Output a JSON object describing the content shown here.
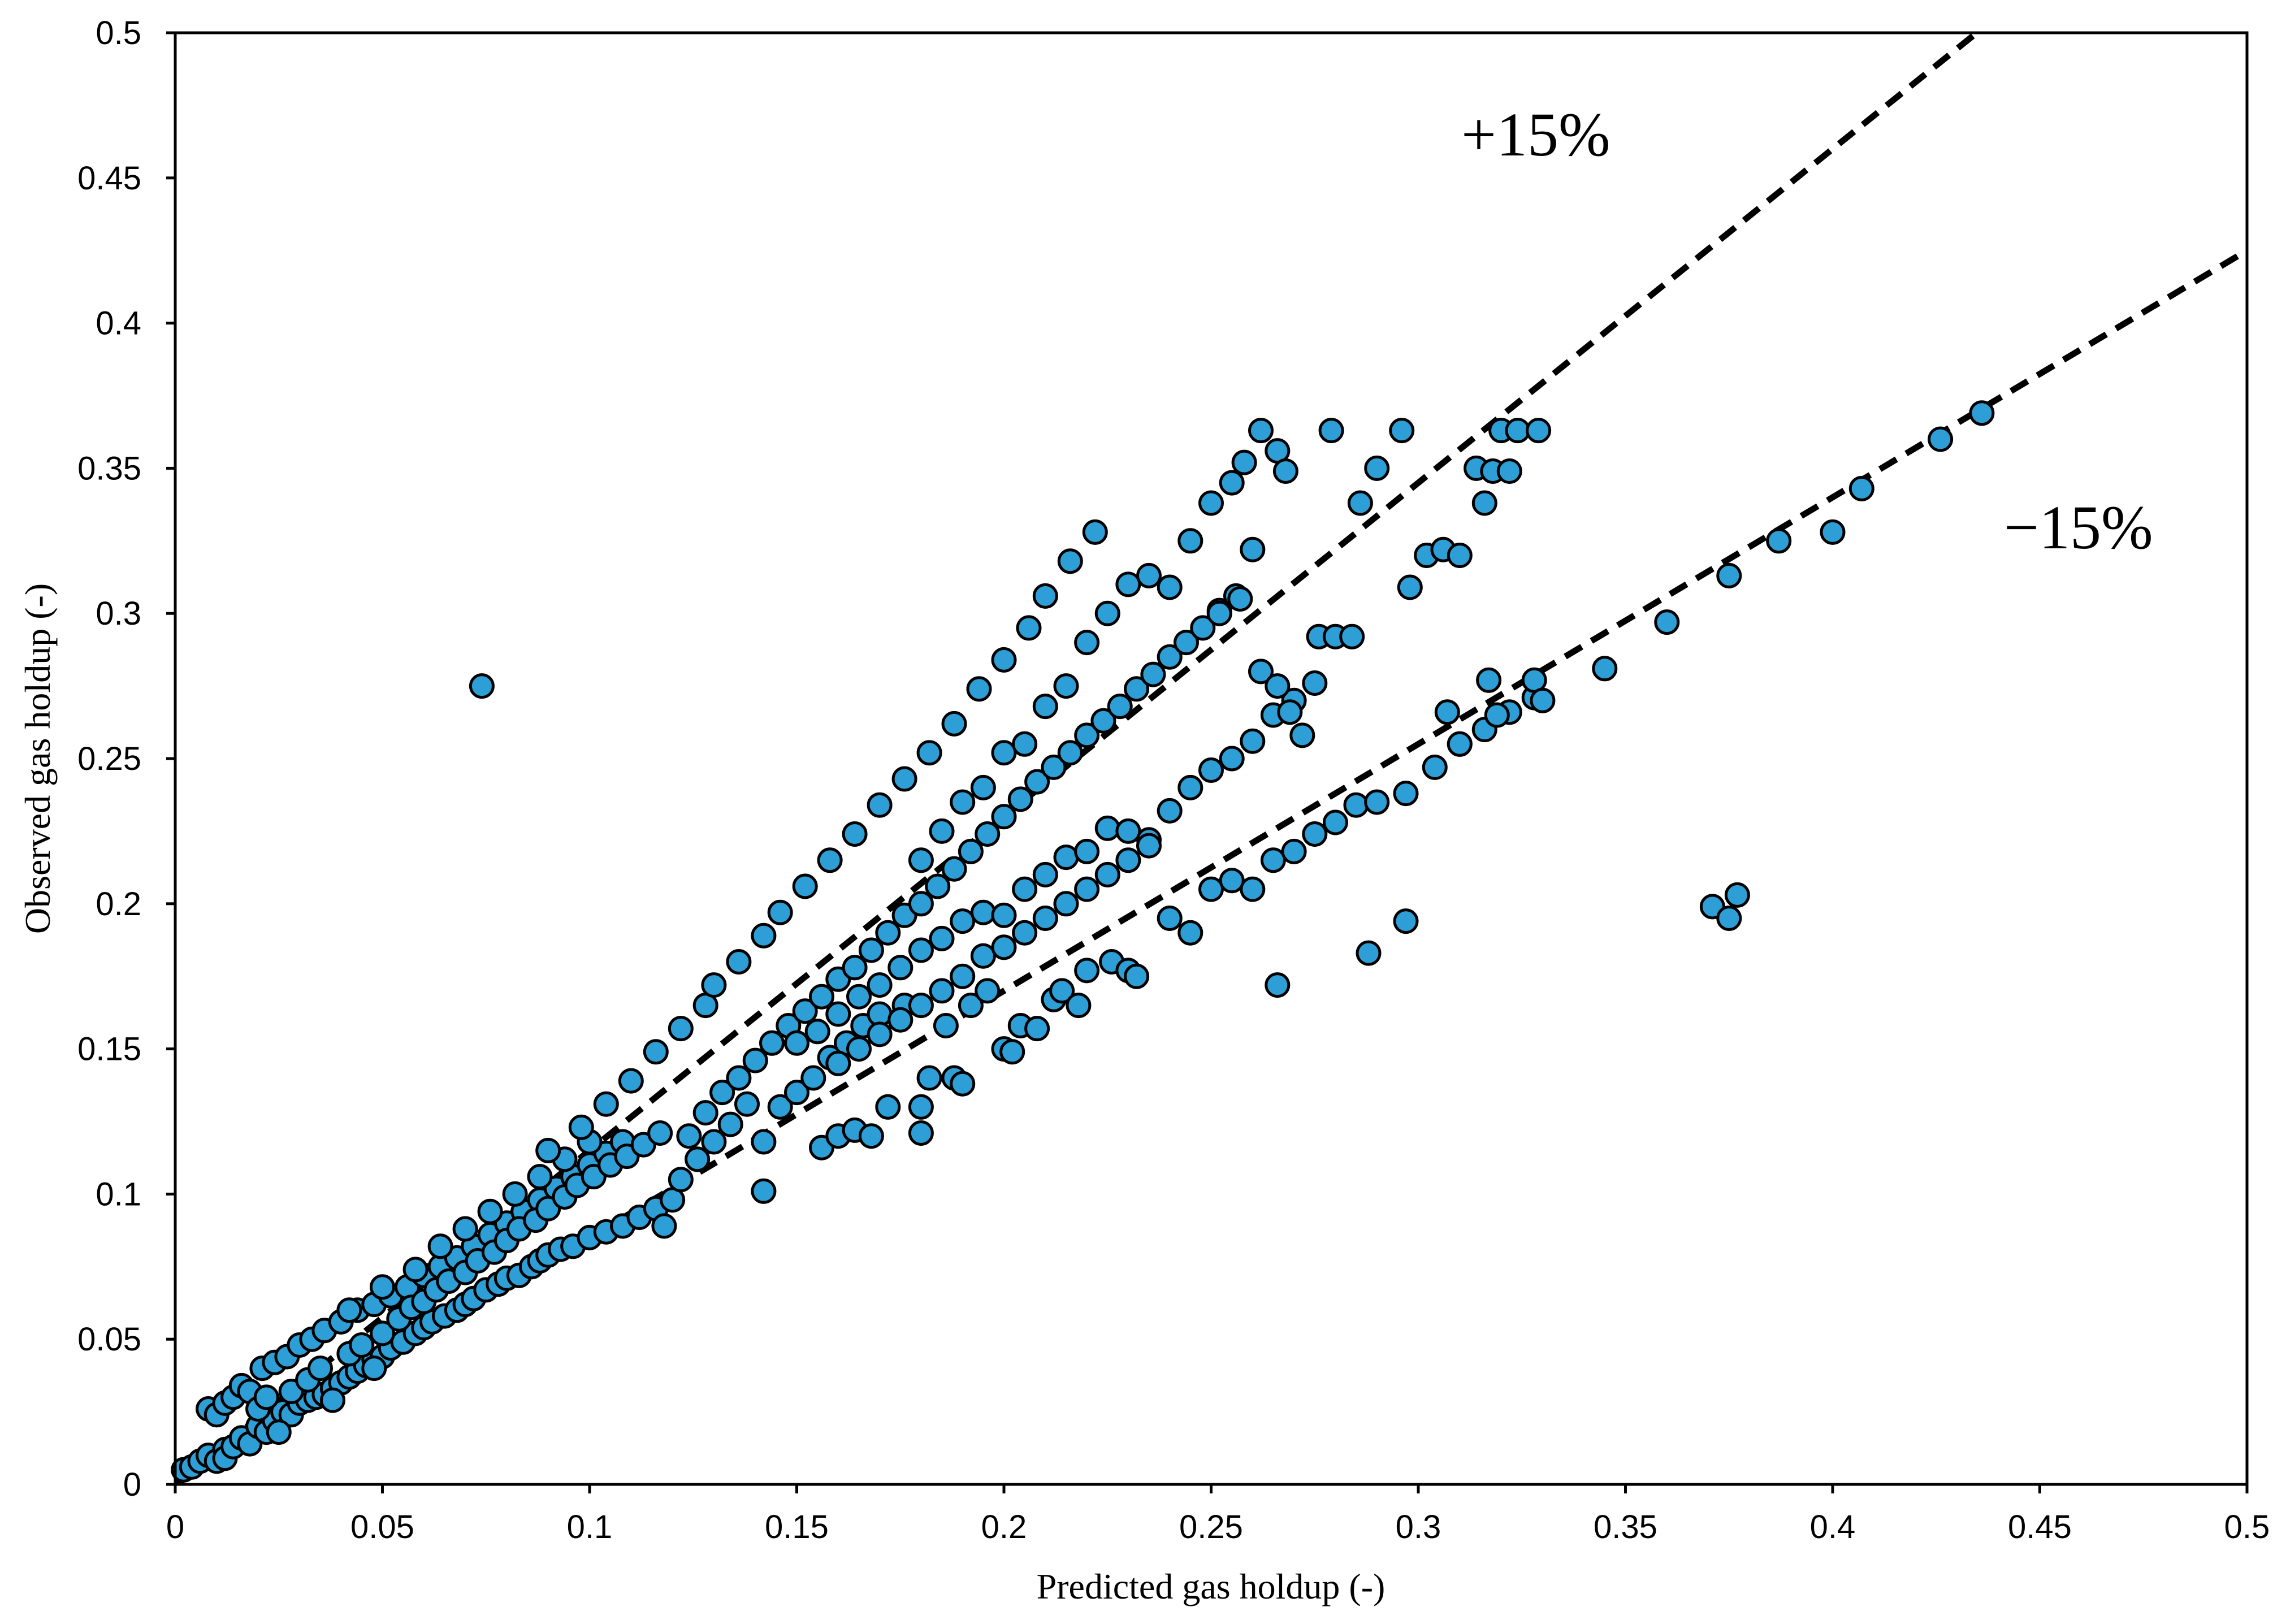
{
  "chart_data": {
    "type": "scatter",
    "xlabel": "Predicted gas holdup (-)",
    "ylabel": "Observed gas holdup (-)",
    "xlim": [
      0,
      0.5
    ],
    "ylim": [
      0,
      0.5
    ],
    "x_ticks": [
      "0",
      "0.05",
      "0.1",
      "0.15",
      "0.2",
      "0.25",
      "0.3",
      "0.35",
      "0.4",
      "0.45",
      "0.5"
    ],
    "y_ticks": [
      "0",
      "0.05",
      "0.1",
      "0.15",
      "0.2",
      "0.25",
      "0.3",
      "0.35",
      "0.4",
      "0.45",
      "0.5"
    ],
    "grid": false,
    "legend": "none",
    "marker_color": "#2e9fd6",
    "marker_edge_color": "#000000",
    "reference_lines": [
      {
        "label": "+15%",
        "slope": 1.15,
        "style": "dashed",
        "color": "#000000"
      },
      {
        "label": "−15%",
        "slope": 0.85,
        "style": "dashed",
        "color": "#000000"
      }
    ],
    "annotations": [
      "+15%",
      "−15%"
    ],
    "points": [
      [
        0.002,
        0.005
      ],
      [
        0.004,
        0.006
      ],
      [
        0.006,
        0.008
      ],
      [
        0.008,
        0.01
      ],
      [
        0.01,
        0.008
      ],
      [
        0.012,
        0.012
      ],
      [
        0.012,
        0.009
      ],
      [
        0.014,
        0.013
      ],
      [
        0.016,
        0.016
      ],
      [
        0.018,
        0.014
      ],
      [
        0.02,
        0.02
      ],
      [
        0.022,
        0.018
      ],
      [
        0.024,
        0.022
      ],
      [
        0.026,
        0.025
      ],
      [
        0.028,
        0.024
      ],
      [
        0.03,
        0.028
      ],
      [
        0.032,
        0.029
      ],
      [
        0.034,
        0.03
      ],
      [
        0.036,
        0.031
      ],
      [
        0.038,
        0.033
      ],
      [
        0.04,
        0.035
      ],
      [
        0.042,
        0.037
      ],
      [
        0.044,
        0.039
      ],
      [
        0.046,
        0.041
      ],
      [
        0.048,
        0.043
      ],
      [
        0.05,
        0.044
      ],
      [
        0.052,
        0.047
      ],
      [
        0.055,
        0.049
      ],
      [
        0.058,
        0.052
      ],
      [
        0.06,
        0.054
      ],
      [
        0.062,
        0.056
      ],
      [
        0.065,
        0.058
      ],
      [
        0.068,
        0.06
      ],
      [
        0.07,
        0.062
      ],
      [
        0.072,
        0.064
      ],
      [
        0.075,
        0.067
      ],
      [
        0.078,
        0.069
      ],
      [
        0.08,
        0.071
      ],
      [
        0.083,
        0.072
      ],
      [
        0.086,
        0.075
      ],
      [
        0.088,
        0.077
      ],
      [
        0.09,
        0.079
      ],
      [
        0.093,
        0.081
      ],
      [
        0.096,
        0.082
      ],
      [
        0.1,
        0.085
      ],
      [
        0.104,
        0.087
      ],
      [
        0.108,
        0.089
      ],
      [
        0.112,
        0.092
      ],
      [
        0.116,
        0.095
      ],
      [
        0.12,
        0.098
      ],
      [
        0.008,
        0.026
      ],
      [
        0.01,
        0.024
      ],
      [
        0.012,
        0.028
      ],
      [
        0.014,
        0.03
      ],
      [
        0.016,
        0.034
      ],
      [
        0.018,
        0.032
      ],
      [
        0.021,
        0.04
      ],
      [
        0.024,
        0.042
      ],
      [
        0.027,
        0.044
      ],
      [
        0.03,
        0.048
      ],
      [
        0.033,
        0.05
      ],
      [
        0.036,
        0.053
      ],
      [
        0.04,
        0.056
      ],
      [
        0.044,
        0.06
      ],
      [
        0.048,
        0.062
      ],
      [
        0.052,
        0.065
      ],
      [
        0.056,
        0.068
      ],
      [
        0.06,
        0.072
      ],
      [
        0.064,
        0.075
      ],
      [
        0.068,
        0.078
      ],
      [
        0.072,
        0.082
      ],
      [
        0.076,
        0.086
      ],
      [
        0.08,
        0.09
      ],
      [
        0.084,
        0.094
      ],
      [
        0.088,
        0.098
      ],
      [
        0.092,
        0.102
      ],
      [
        0.096,
        0.106
      ],
      [
        0.1,
        0.11
      ],
      [
        0.104,
        0.114
      ],
      [
        0.108,
        0.118
      ],
      [
        0.02,
        0.026
      ],
      [
        0.022,
        0.03
      ],
      [
        0.025,
        0.018
      ],
      [
        0.028,
        0.032
      ],
      [
        0.032,
        0.036
      ],
      [
        0.035,
        0.04
      ],
      [
        0.038,
        0.029
      ],
      [
        0.042,
        0.045
      ],
      [
        0.045,
        0.048
      ],
      [
        0.048,
        0.04
      ],
      [
        0.05,
        0.052
      ],
      [
        0.054,
        0.057
      ],
      [
        0.057,
        0.061
      ],
      [
        0.06,
        0.063
      ],
      [
        0.063,
        0.067
      ],
      [
        0.066,
        0.07
      ],
      [
        0.07,
        0.073
      ],
      [
        0.073,
        0.077
      ],
      [
        0.077,
        0.08
      ],
      [
        0.08,
        0.084
      ],
      [
        0.083,
        0.088
      ],
      [
        0.087,
        0.091
      ],
      [
        0.09,
        0.095
      ],
      [
        0.094,
        0.099
      ],
      [
        0.097,
        0.103
      ],
      [
        0.101,
        0.106
      ],
      [
        0.105,
        0.11
      ],
      [
        0.109,
        0.113
      ],
      [
        0.113,
        0.117
      ],
      [
        0.117,
        0.121
      ],
      [
        0.042,
        0.06
      ],
      [
        0.05,
        0.068
      ],
      [
        0.058,
        0.074
      ],
      [
        0.064,
        0.082
      ],
      [
        0.07,
        0.088
      ],
      [
        0.076,
        0.094
      ],
      [
        0.082,
        0.1
      ],
      [
        0.088,
        0.106
      ],
      [
        0.094,
        0.112
      ],
      [
        0.1,
        0.118
      ],
      [
        0.074,
        0.275
      ],
      [
        0.09,
        0.115
      ],
      [
        0.098,
        0.123
      ],
      [
        0.104,
        0.131
      ],
      [
        0.11,
        0.139
      ],
      [
        0.116,
        0.149
      ],
      [
        0.122,
        0.157
      ],
      [
        0.128,
        0.165
      ],
      [
        0.13,
        0.172
      ],
      [
        0.136,
        0.18
      ],
      [
        0.142,
        0.189
      ],
      [
        0.146,
        0.197
      ],
      [
        0.152,
        0.206
      ],
      [
        0.158,
        0.215
      ],
      [
        0.164,
        0.224
      ],
      [
        0.17,
        0.234
      ],
      [
        0.176,
        0.243
      ],
      [
        0.182,
        0.252
      ],
      [
        0.188,
        0.262
      ],
      [
        0.194,
        0.274
      ],
      [
        0.2,
        0.284
      ],
      [
        0.206,
        0.295
      ],
      [
        0.21,
        0.306
      ],
      [
        0.216,
        0.318
      ],
      [
        0.222,
        0.328
      ],
      [
        0.118,
        0.089
      ],
      [
        0.122,
        0.105
      ],
      [
        0.126,
        0.112
      ],
      [
        0.13,
        0.118
      ],
      [
        0.134,
        0.124
      ],
      [
        0.138,
        0.131
      ],
      [
        0.142,
        0.101
      ],
      [
        0.142,
        0.118
      ],
      [
        0.146,
        0.13
      ],
      [
        0.15,
        0.135
      ],
      [
        0.154,
        0.14
      ],
      [
        0.156,
        0.116
      ],
      [
        0.158,
        0.147
      ],
      [
        0.16,
        0.12
      ],
      [
        0.162,
        0.152
      ],
      [
        0.164,
        0.122
      ],
      [
        0.166,
        0.158
      ],
      [
        0.168,
        0.12
      ],
      [
        0.17,
        0.162
      ],
      [
        0.172,
        0.13
      ],
      [
        0.176,
        0.165
      ],
      [
        0.18,
        0.121
      ],
      [
        0.18,
        0.13
      ],
      [
        0.182,
        0.14
      ],
      [
        0.186,
        0.158
      ],
      [
        0.188,
        0.14
      ],
      [
        0.19,
        0.138
      ],
      [
        0.192,
        0.165
      ],
      [
        0.196,
        0.17
      ],
      [
        0.2,
        0.15
      ],
      [
        0.202,
        0.149
      ],
      [
        0.204,
        0.158
      ],
      [
        0.208,
        0.157
      ],
      [
        0.212,
        0.167
      ],
      [
        0.214,
        0.17
      ],
      [
        0.218,
        0.165
      ],
      [
        0.22,
        0.177
      ],
      [
        0.226,
        0.18
      ],
      [
        0.23,
        0.177
      ],
      [
        0.232,
        0.175
      ],
      [
        0.124,
        0.12
      ],
      [
        0.128,
        0.128
      ],
      [
        0.132,
        0.135
      ],
      [
        0.136,
        0.14
      ],
      [
        0.14,
        0.146
      ],
      [
        0.144,
        0.152
      ],
      [
        0.148,
        0.158
      ],
      [
        0.152,
        0.163
      ],
      [
        0.156,
        0.168
      ],
      [
        0.16,
        0.174
      ],
      [
        0.164,
        0.178
      ],
      [
        0.168,
        0.184
      ],
      [
        0.172,
        0.19
      ],
      [
        0.176,
        0.196
      ],
      [
        0.18,
        0.2
      ],
      [
        0.184,
        0.206
      ],
      [
        0.188,
        0.212
      ],
      [
        0.192,
        0.218
      ],
      [
        0.196,
        0.224
      ],
      [
        0.2,
        0.23
      ],
      [
        0.204,
        0.236
      ],
      [
        0.208,
        0.242
      ],
      [
        0.212,
        0.247
      ],
      [
        0.216,
        0.252
      ],
      [
        0.22,
        0.258
      ],
      [
        0.224,
        0.263
      ],
      [
        0.228,
        0.268
      ],
      [
        0.232,
        0.274
      ],
      [
        0.236,
        0.279
      ],
      [
        0.24,
        0.285
      ],
      [
        0.244,
        0.29
      ],
      [
        0.248,
        0.295
      ],
      [
        0.252,
        0.301
      ],
      [
        0.256,
        0.306
      ],
      [
        0.15,
        0.152
      ],
      [
        0.155,
        0.156
      ],
      [
        0.16,
        0.162
      ],
      [
        0.165,
        0.168
      ],
      [
        0.17,
        0.172
      ],
      [
        0.175,
        0.178
      ],
      [
        0.18,
        0.184
      ],
      [
        0.185,
        0.188
      ],
      [
        0.19,
        0.194
      ],
      [
        0.195,
        0.197
      ],
      [
        0.2,
        0.196
      ],
      [
        0.205,
        0.205
      ],
      [
        0.21,
        0.21
      ],
      [
        0.215,
        0.216
      ],
      [
        0.22,
        0.218
      ],
      [
        0.225,
        0.226
      ],
      [
        0.23,
        0.225
      ],
      [
        0.235,
        0.222
      ],
      [
        0.24,
        0.232
      ],
      [
        0.245,
        0.24
      ],
      [
        0.25,
        0.246
      ],
      [
        0.255,
        0.25
      ],
      [
        0.26,
        0.256
      ],
      [
        0.265,
        0.265
      ],
      [
        0.27,
        0.27
      ],
      [
        0.275,
        0.276
      ],
      [
        0.16,
        0.145
      ],
      [
        0.165,
        0.15
      ],
      [
        0.17,
        0.155
      ],
      [
        0.175,
        0.16
      ],
      [
        0.18,
        0.165
      ],
      [
        0.185,
        0.17
      ],
      [
        0.19,
        0.175
      ],
      [
        0.195,
        0.182
      ],
      [
        0.2,
        0.185
      ],
      [
        0.205,
        0.19
      ],
      [
        0.21,
        0.195
      ],
      [
        0.215,
        0.2
      ],
      [
        0.22,
        0.205
      ],
      [
        0.225,
        0.21
      ],
      [
        0.23,
        0.215
      ],
      [
        0.235,
        0.22
      ],
      [
        0.24,
        0.195
      ],
      [
        0.245,
        0.19
      ],
      [
        0.25,
        0.205
      ],
      [
        0.255,
        0.208
      ],
      [
        0.26,
        0.205
      ],
      [
        0.265,
        0.215
      ],
      [
        0.27,
        0.218
      ],
      [
        0.275,
        0.224
      ],
      [
        0.28,
        0.228
      ],
      [
        0.285,
        0.234
      ],
      [
        0.29,
        0.235
      ],
      [
        0.297,
        0.238
      ],
      [
        0.304,
        0.247
      ],
      [
        0.31,
        0.255
      ],
      [
        0.316,
        0.26
      ],
      [
        0.322,
        0.266
      ],
      [
        0.328,
        0.271
      ],
      [
        0.18,
        0.215
      ],
      [
        0.185,
        0.225
      ],
      [
        0.19,
        0.235
      ],
      [
        0.195,
        0.24
      ],
      [
        0.2,
        0.252
      ],
      [
        0.205,
        0.255
      ],
      [
        0.21,
        0.268
      ],
      [
        0.215,
        0.275
      ],
      [
        0.22,
        0.29
      ],
      [
        0.225,
        0.3
      ],
      [
        0.23,
        0.31
      ],
      [
        0.235,
        0.313
      ],
      [
        0.24,
        0.309
      ],
      [
        0.245,
        0.325
      ],
      [
        0.25,
        0.338
      ],
      [
        0.255,
        0.345
      ],
      [
        0.258,
        0.352
      ],
      [
        0.262,
        0.363
      ],
      [
        0.266,
        0.356
      ],
      [
        0.268,
        0.349
      ],
      [
        0.26,
        0.322
      ],
      [
        0.257,
        0.305
      ],
      [
        0.252,
        0.3
      ],
      [
        0.262,
        0.28
      ],
      [
        0.266,
        0.275
      ],
      [
        0.269,
        0.266
      ],
      [
        0.272,
        0.258
      ],
      [
        0.276,
        0.292
      ],
      [
        0.28,
        0.292
      ],
      [
        0.284,
        0.292
      ],
      [
        0.286,
        0.338
      ],
      [
        0.29,
        0.35
      ],
      [
        0.296,
        0.363
      ],
      [
        0.279,
        0.363
      ],
      [
        0.298,
        0.309
      ],
      [
        0.302,
        0.32
      ],
      [
        0.306,
        0.322
      ],
      [
        0.31,
        0.32
      ],
      [
        0.314,
        0.35
      ],
      [
        0.318,
        0.349
      ],
      [
        0.32,
        0.363
      ],
      [
        0.324,
        0.363
      ],
      [
        0.329,
        0.363
      ],
      [
        0.322,
        0.349
      ],
      [
        0.316,
        0.338
      ],
      [
        0.266,
        0.172
      ],
      [
        0.288,
        0.183
      ],
      [
        0.297,
        0.194
      ],
      [
        0.345,
        0.281
      ],
      [
        0.36,
        0.297
      ],
      [
        0.371,
        0.199
      ],
      [
        0.375,
        0.195
      ],
      [
        0.377,
        0.203
      ],
      [
        0.375,
        0.313
      ],
      [
        0.387,
        0.325
      ],
      [
        0.4,
        0.328
      ],
      [
        0.407,
        0.343
      ],
      [
        0.426,
        0.36
      ],
      [
        0.436,
        0.369
      ],
      [
        0.328,
        0.277
      ],
      [
        0.33,
        0.27
      ],
      [
        0.317,
        0.277
      ],
      [
        0.319,
        0.265
      ],
      [
        0.307,
        0.266
      ],
      [
        0.31,
        0.255
      ]
    ]
  }
}
